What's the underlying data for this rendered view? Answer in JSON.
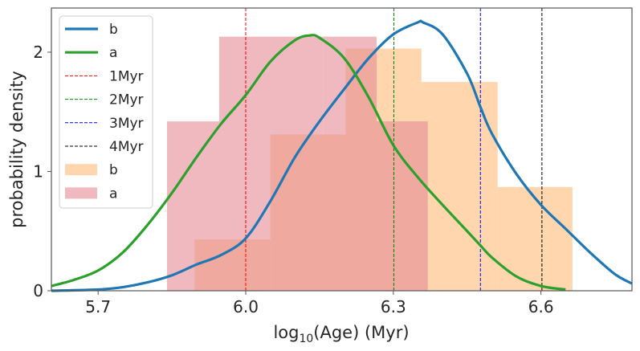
{
  "chart_data": {
    "type": "histogram+kde",
    "title": "",
    "xlabel_parts": {
      "base": "log",
      "sub": "10",
      "rest": "(Age) (Myr)"
    },
    "ylabel": "probability density",
    "xlim": [
      5.605,
      6.785
    ],
    "ylim": [
      0,
      2.37
    ],
    "xticks": [
      5.7,
      6.0,
      6.3,
      6.6
    ],
    "xtick_labels": [
      "5.7",
      "6.0",
      "6.3",
      "6.6"
    ],
    "yticks": [
      0,
      1,
      2
    ],
    "ytick_labels": [
      "0",
      "1",
      "2"
    ],
    "grid": false,
    "legend_position": "top-left",
    "histograms": [
      {
        "name": "b",
        "color": "#ffbb78",
        "alpha": 0.6,
        "bin_edges": [
          5.896,
          6.05,
          6.203,
          6.357,
          6.512,
          6.664
        ],
        "values": [
          0.43,
          1.31,
          2.03,
          1.75,
          0.87
        ]
      },
      {
        "name": "a",
        "color": "#e58a94",
        "alpha": 0.6,
        "bin_edges": [
          5.84,
          5.946,
          6.052,
          6.158,
          6.266,
          6.37
        ],
        "values": [
          1.42,
          2.13,
          2.13,
          2.13,
          1.42
        ]
      }
    ],
    "kde_series": [
      {
        "name": "b",
        "color": "#1f77b4",
        "x": [
          5.605,
          5.7,
          5.75,
          5.8,
          5.85,
          5.9,
          5.95,
          6.0,
          6.05,
          6.1,
          6.15,
          6.2,
          6.25,
          6.3,
          6.35,
          6.36,
          6.4,
          6.45,
          6.477,
          6.5,
          6.55,
          6.6,
          6.65,
          6.7,
          6.75,
          6.785
        ],
        "y": [
          0.0,
          0.01,
          0.03,
          0.07,
          0.13,
          0.22,
          0.3,
          0.44,
          0.75,
          1.12,
          1.42,
          1.69,
          1.95,
          2.15,
          2.25,
          2.25,
          2.15,
          1.82,
          1.54,
          1.32,
          0.98,
          0.72,
          0.52,
          0.32,
          0.14,
          0.06
        ]
      },
      {
        "name": "a",
        "color": "#2ca02c",
        "x": [
          5.605,
          5.65,
          5.7,
          5.75,
          5.8,
          5.85,
          5.9,
          5.95,
          6.0,
          6.05,
          6.1,
          6.13,
          6.15,
          6.2,
          6.25,
          6.3,
          6.35,
          6.4,
          6.45,
          6.477,
          6.5,
          6.55,
          6.6,
          6.65
        ],
        "y": [
          0.04,
          0.09,
          0.17,
          0.32,
          0.55,
          0.82,
          1.12,
          1.4,
          1.64,
          1.92,
          2.1,
          2.14,
          2.12,
          1.95,
          1.62,
          1.22,
          0.95,
          0.72,
          0.5,
          0.38,
          0.28,
          0.12,
          0.04,
          0.01
        ]
      }
    ],
    "vlines": [
      {
        "name": "1Myr",
        "x": 6.0,
        "color": "#ff0000"
      },
      {
        "name": "2Myr",
        "x": 6.301,
        "color": "#008000"
      },
      {
        "name": "3Myr",
        "x": 6.477,
        "color": "#0000ff"
      },
      {
        "name": "4Myr",
        "x": 6.602,
        "color": "#000000"
      }
    ],
    "legend": [
      {
        "label": "b",
        "kind": "line",
        "color": "#1f77b4"
      },
      {
        "label": "a",
        "kind": "line",
        "color": "#2ca02c"
      },
      {
        "label": "1Myr",
        "kind": "dashed",
        "color": "#ff0000"
      },
      {
        "label": "2Myr",
        "kind": "dashed",
        "color": "#008000"
      },
      {
        "label": "3Myr",
        "kind": "dashed",
        "color": "#0000ff"
      },
      {
        "label": "4Myr",
        "kind": "dashed",
        "color": "#000000"
      },
      {
        "label": "b",
        "kind": "patch",
        "color": "#ffbb78"
      },
      {
        "label": "a",
        "kind": "patch",
        "color": "#e58a94"
      }
    ]
  }
}
